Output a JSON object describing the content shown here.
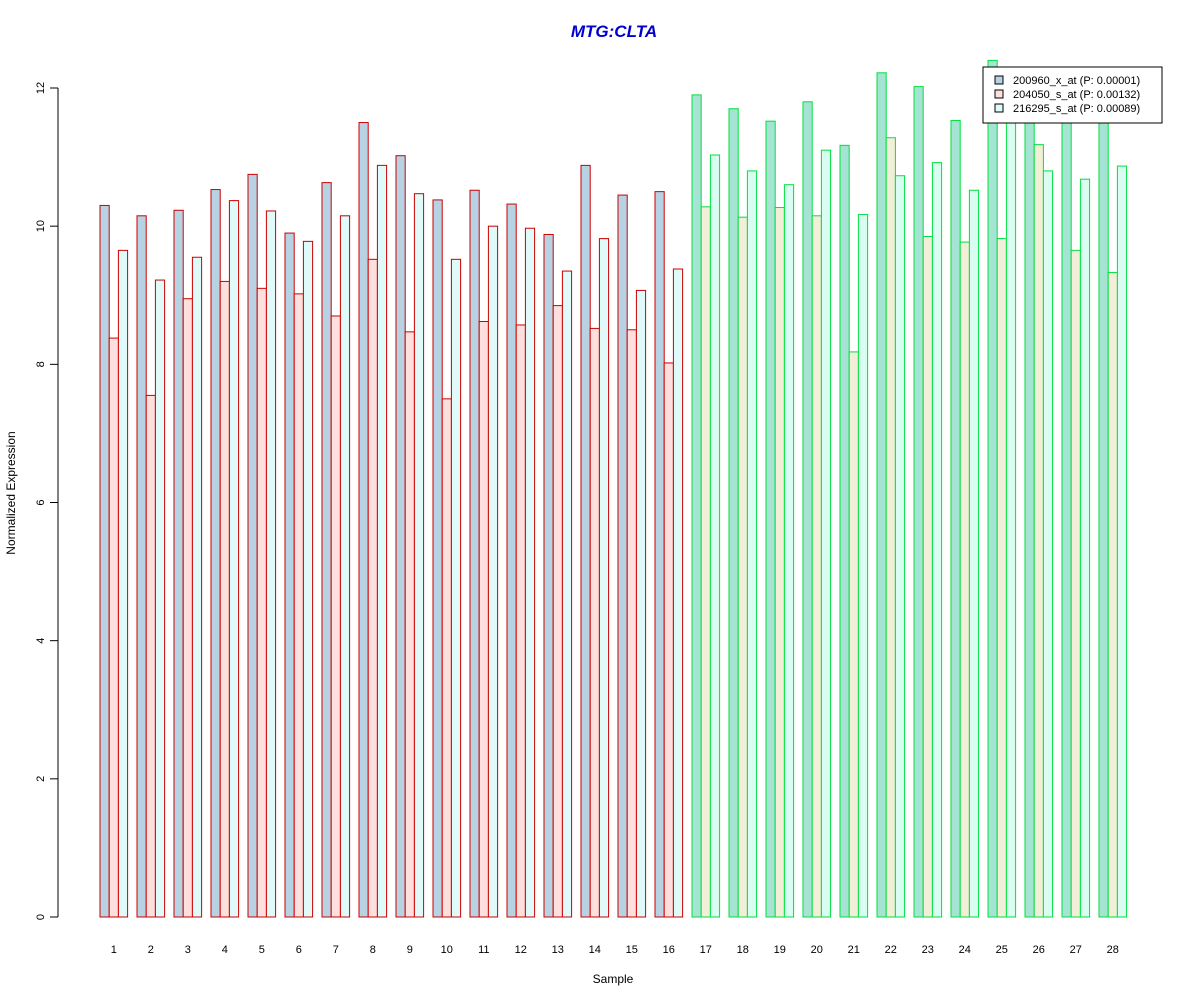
{
  "chart_data": {
    "type": "bar",
    "title": "MTG:CLTA",
    "xlabel": "Sample",
    "ylabel": "Normalized Expression",
    "ylim": [
      0,
      12
    ],
    "yticks": [
      "0",
      "2",
      "4",
      "6",
      "8",
      "10",
      "12"
    ],
    "categories": [
      "1",
      "2",
      "3",
      "4",
      "5",
      "6",
      "7",
      "8",
      "9",
      "10",
      "11",
      "12",
      "13",
      "14",
      "15",
      "16",
      "17",
      "18",
      "19",
      "20",
      "21",
      "22",
      "23",
      "24",
      "25",
      "26",
      "27",
      "28"
    ],
    "series": [
      {
        "name": "200960_x_at (P: 0.00001)",
        "values": [
          10.3,
          10.15,
          10.23,
          10.53,
          10.75,
          9.9,
          10.63,
          11.5,
          11.02,
          10.38,
          10.52,
          10.32,
          9.88,
          10.88,
          10.45,
          10.5,
          11.9,
          11.7,
          11.52,
          11.8,
          11.17,
          12.22,
          12.02,
          11.53,
          12.4,
          11.6,
          11.6,
          11.6
        ]
      },
      {
        "name": "204050_s_at (P: 0.00132)",
        "values": [
          8.38,
          7.55,
          8.95,
          9.2,
          9.1,
          9.02,
          8.7,
          9.52,
          8.47,
          7.5,
          8.62,
          8.57,
          8.85,
          8.52,
          8.5,
          8.02,
          10.28,
          10.13,
          10.27,
          10.15,
          8.18,
          11.28,
          9.85,
          9.77,
          9.82,
          11.18,
          9.65,
          9.33
        ]
      },
      {
        "name": "216295_s_at (P: 0.00089)",
        "values": [
          9.65,
          9.22,
          9.55,
          10.37,
          10.22,
          9.78,
          10.15,
          10.88,
          10.47,
          9.52,
          10.0,
          9.97,
          9.35,
          9.82,
          9.07,
          9.38,
          11.03,
          10.8,
          10.6,
          11.1,
          10.17,
          10.73,
          10.92,
          10.52,
          11.5,
          10.8,
          10.68,
          10.87
        ]
      }
    ],
    "group_borders": [
      "#cc0000",
      "#00e040"
    ],
    "group_split_after": 16,
    "series_fills": {
      "group1": [
        "#b7d3e3",
        "#fde0dd",
        "#e0fafa"
      ],
      "group2": [
        "#a5e3d3",
        "#f3eed8",
        "#d9fdf0"
      ]
    },
    "legend_swatches": [
      "#b7d3e3",
      "#fde0dd",
      "#e0fafa"
    ],
    "legend_position": "top-right",
    "grid": false
  }
}
